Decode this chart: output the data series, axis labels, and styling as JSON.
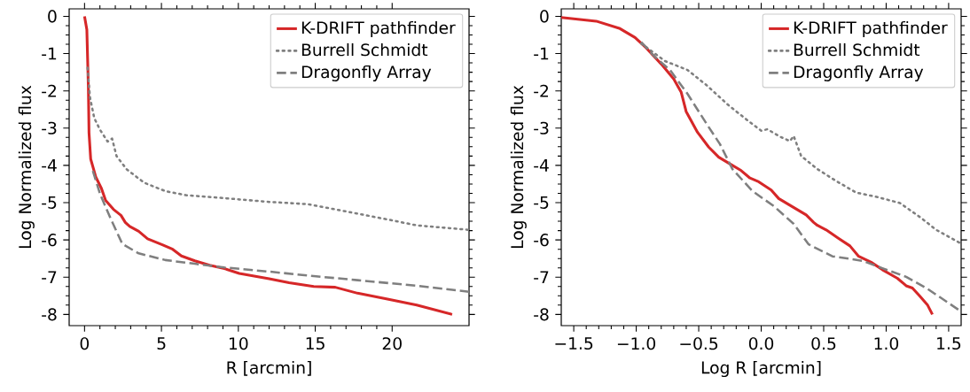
{
  "chart_data": [
    {
      "type": "line",
      "xlabel": "R [arcmin]",
      "ylabel": "Log Normalized flux",
      "xlim": [
        -1,
        25
      ],
      "ylim": [
        -8.3,
        0.2
      ],
      "xticks": [
        0,
        5,
        10,
        15,
        20
      ],
      "yticks": [
        0,
        -1,
        -2,
        -3,
        -4,
        -5,
        -6,
        -7,
        -8
      ],
      "legend": "top right",
      "grid": false,
      "series": [
        {
          "name": "K-DRIFT pathfinder",
          "color": "#d62728",
          "line_style": "solid",
          "x": [
            0,
            0.15,
            0.25,
            0.29,
            0.4,
            0.73,
            1.1,
            1.37,
            1.88,
            2.37,
            2.65,
            2.94,
            3.52,
            4.1,
            5.06,
            5.73,
            6.3,
            7.17,
            8.13,
            9.1,
            10.06,
            12,
            13.3,
            14.9,
            16.3,
            17.75,
            19.7,
            21.6,
            23.9
          ],
          "values": [
            0,
            -0.36,
            -1.94,
            -3.12,
            -3.83,
            -4.31,
            -4.62,
            -4.94,
            -5.18,
            -5.34,
            -5.53,
            -5.64,
            -5.77,
            -5.97,
            -6.13,
            -6.25,
            -6.43,
            -6.56,
            -6.68,
            -6.77,
            -6.9,
            -7.04,
            -7.15,
            -7.25,
            -7.27,
            -7.43,
            -7.59,
            -7.75,
            -8.0
          ]
        },
        {
          "name": "Burrell Schmidt",
          "color": "#7f7f7f",
          "line_style": "dotted",
          "x": [
            0.2,
            0.35,
            0.63,
            1.0,
            1.5,
            1.79,
            2.08,
            2.75,
            3.9,
            5.25,
            6.6,
            9.1,
            12,
            14.5,
            16.8,
            19.7,
            21.6,
            25
          ],
          "values": [
            -1.38,
            -2.17,
            -2.73,
            -3.04,
            -3.36,
            -3.28,
            -3.75,
            -4.11,
            -4.47,
            -4.69,
            -4.8,
            -4.88,
            -4.98,
            -5.04,
            -5.22,
            -5.45,
            -5.61,
            -5.73
          ]
        },
        {
          "name": "Dragonfly Array",
          "color": "#7f7f7f",
          "line_style": "dashed",
          "x": [
            0.54,
            1.02,
            1.69,
            2.46,
            3.52,
            5.25,
            7.17,
            9.1,
            12,
            14.9,
            17.75,
            21.6,
            25
          ],
          "values": [
            -4.15,
            -4.78,
            -5.42,
            -6.11,
            -6.36,
            -6.54,
            -6.64,
            -6.74,
            -6.85,
            -6.97,
            -7.08,
            -7.23,
            -7.39
          ]
        }
      ]
    },
    {
      "type": "line",
      "xlabel": "Log R [arcmin]",
      "ylabel": "Log Normalized flux",
      "xlim": [
        -1.6,
        1.6
      ],
      "ylim": [
        -8.3,
        0.2
      ],
      "xticks": [
        {
          "value": -1.5,
          "label": "−1.5"
        },
        {
          "value": -1.0,
          "label": "−1.0"
        },
        {
          "value": -0.5,
          "label": "−0.5"
        },
        {
          "value": 0.0,
          "label": "0.0"
        },
        {
          "value": 0.5,
          "label": "0.5"
        },
        {
          "value": 1.0,
          "label": "1.0"
        },
        {
          "value": 1.5,
          "label": "1.5"
        }
      ],
      "yticks": [
        0,
        -1,
        -2,
        -3,
        -4,
        -5,
        -6,
        -7,
        -8
      ],
      "legend": "top right",
      "grid": false,
      "series": [
        {
          "name": "K-DRIFT pathfinder",
          "color": "#d62728",
          "line_style": "solid",
          "x": [
            -1.6,
            -1.32,
            -1.13,
            -1.01,
            -0.92,
            -0.8,
            -0.7,
            -0.64,
            -0.6,
            -0.51,
            -0.42,
            -0.34,
            -0.26,
            -0.16,
            -0.09,
            -0.02,
            0.08,
            0.14,
            0.22,
            0.36,
            0.42,
            0.45,
            0.52,
            0.62,
            0.71,
            0.78,
            0.88,
            0.97,
            1.09,
            1.16,
            1.21,
            1.27,
            1.33,
            1.37
          ],
          "values": [
            -0.03,
            -0.13,
            -0.33,
            -0.57,
            -0.85,
            -1.28,
            -1.68,
            -2.04,
            -2.56,
            -3.11,
            -3.51,
            -3.78,
            -3.94,
            -4.14,
            -4.34,
            -4.44,
            -4.66,
            -4.89,
            -5.05,
            -5.33,
            -5.53,
            -5.61,
            -5.73,
            -5.96,
            -6.16,
            -6.44,
            -6.6,
            -6.8,
            -7.03,
            -7.23,
            -7.29,
            -7.51,
            -7.74,
            -8.0
          ]
        },
        {
          "name": "Burrell Schmidt",
          "color": "#7f7f7f",
          "line_style": "dotted",
          "x": [
            -0.96,
            -0.77,
            -0.59,
            -0.44,
            -0.26,
            -0.11,
            0.0,
            0.05,
            0.15,
            0.23,
            0.26,
            0.32,
            0.45,
            0.6,
            0.76,
            0.93,
            1.11,
            1.28,
            1.4,
            1.59
          ],
          "values": [
            -0.73,
            -1.2,
            -1.44,
            -1.84,
            -2.39,
            -2.79,
            -3.07,
            -3.03,
            -3.23,
            -3.35,
            -3.21,
            -3.75,
            -4.1,
            -4.42,
            -4.73,
            -4.85,
            -5.01,
            -5.41,
            -5.73,
            -6.08
          ]
        },
        {
          "name": "Dragonfly Array",
          "color": "#7f7f7f",
          "line_style": "dashed",
          "x": [
            -0.96,
            -0.85,
            -0.73,
            -0.59,
            -0.44,
            -0.33,
            -0.23,
            -0.07,
            0.1,
            0.26,
            0.38,
            0.57,
            0.81,
            0.97,
            1.16,
            1.33,
            1.59
          ],
          "values": [
            -0.69,
            -1.09,
            -1.44,
            -2.08,
            -2.87,
            -3.43,
            -4.1,
            -4.69,
            -5.09,
            -5.57,
            -6.12,
            -6.44,
            -6.56,
            -6.76,
            -6.99,
            -7.31,
            -7.9
          ]
        }
      ]
    }
  ]
}
